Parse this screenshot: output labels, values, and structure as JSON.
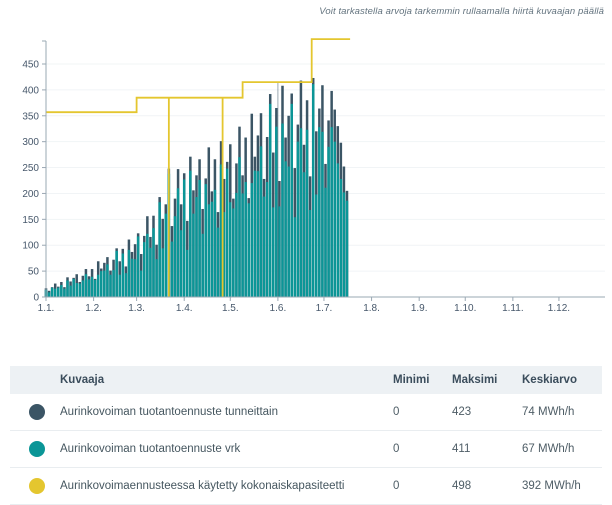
{
  "note": "Voit tarkastella arvoja tarkemmin rullaamalla hiirtä kuvaajan päällä",
  "colors": {
    "hourly": "#3b5565",
    "daily": "#0b9697",
    "capacity": "#e4c62f",
    "axis": "#9aa8b3",
    "grid": "#f1f4f6",
    "tick_text": "#47586b",
    "hover_marker": "#3b5565"
  },
  "chart_data": {
    "type": "area",
    "title": "",
    "xlabel": "",
    "ylabel": "",
    "y_ticks": [
      0,
      50,
      100,
      150,
      200,
      250,
      300,
      350,
      400,
      450
    ],
    "ylim": [
      0,
      495
    ],
    "x_tick_labels": [
      "1.1.",
      "1.2.",
      "1.3.",
      "1.4.",
      "1.5.",
      "1.6.",
      "1.7.",
      "1.8.",
      "1.9.",
      "1.10.",
      "1.11.",
      "1.12."
    ],
    "x_tick_days": [
      0,
      31,
      59,
      90,
      120,
      151,
      181,
      212,
      243,
      273,
      304,
      334
    ],
    "x_range_days": [
      0,
      364
    ],
    "grid": "horizontal",
    "legend_position": "table-below",
    "sample_step_days": 2,
    "hover_marker_day": 151,
    "series": [
      {
        "name": "Aurinkovoiman tuotantoennuste tunneittain",
        "color_key": "hourly",
        "unit": "MWh/h",
        "values": [
          17,
          12,
          19,
          26,
          20,
          29,
          19,
          38,
          30,
          37,
          44,
          29,
          41,
          54,
          40,
          54,
          35,
          69,
          55,
          66,
          77,
          51,
          72,
          94,
          69,
          93,
          59,
          111,
          87,
          102,
          123,
          83,
          118,
          156,
          116,
          157,
          101,
          193,
          151,
          179,
          248,
          137,
          190,
          247,
          179,
          239,
          147,
          271,
          206,
          235,
          266,
          170,
          229,
          289,
          204,
          266,
          164,
          301,
          228,
          261,
          295,
          190,
          258,
          329,
          235,
          308,
          191,
          354,
          271,
          312,
          355,
          228,
          309,
          392,
          279,
          365,
          224,
          408,
          308,
          350,
          393,
          249,
          333,
          418,
          294,
          380,
          233,
          423,
          320,
          364,
          409,
          257,
          341,
          398,
          362,
          330,
          298,
          252,
          205
        ]
      },
      {
        "name": "Aurinkovoiman tuotantoennuste vrk",
        "color_key": "daily",
        "unit": "MWh/h",
        "values": [
          14,
          9,
          18,
          16,
          18,
          23,
          16,
          32,
          22,
          35,
          27,
          26,
          32,
          44,
          34,
          39,
          33,
          43,
          50,
          51,
          63,
          43,
          52,
          89,
          43,
          84,
          46,
          91,
          74,
          73,
          117,
          51,
          106,
          122,
          95,
          133,
          73,
          183,
          94,
          161,
          238,
          107,
          156,
          210,
          129,
          227,
          91,
          244,
          161,
          193,
          226,
          122,
          218,
          179,
          184,
          207,
          134,
          256,
          164,
          248,
          183,
          171,
          201,
          270,
          200,
          222,
          181,
          220,
          244,
          243,
          291,
          194,
          222,
          373,
          173,
          329,
          175,
          335,
          262,
          252,
          373,
          154,
          300,
          326,
          241,
          323,
          168,
          411,
          198,
          328,
          319,
          211,
          290,
          328,
          300,
          258,
          228,
          202,
          186
        ]
      },
      {
        "name": "Aurinkovoimaennusteessa käytetty kokonaiskapasiteetti",
        "color_key": "capacity",
        "unit": "MWh/h",
        "step_points": [
          [
            0,
            357
          ],
          [
            59,
            357
          ],
          [
            59,
            385
          ],
          [
            128,
            385
          ],
          [
            128,
            415
          ],
          [
            173,
            415
          ],
          [
            173,
            498
          ],
          [
            198,
            498
          ]
        ],
        "zero_drop_days": [
          80,
          115
        ],
        "zero_drop_from_value": 385
      }
    ]
  },
  "table": {
    "headers": {
      "series": "Kuvaaja",
      "min": "Minimi",
      "max": "Maksimi",
      "avg": "Keskiarvo"
    },
    "rows": [
      {
        "label": "Aurinkovoiman tuotantoennuste tunneittain",
        "min": "0",
        "max": "423",
        "avg": "74 MWh/h",
        "color": "#3b5565"
      },
      {
        "label": "Aurinkovoiman tuotantoennuste vrk",
        "min": "0",
        "max": "411",
        "avg": "67 MWh/h",
        "color": "#0b9697"
      },
      {
        "label": "Aurinkovoimaennusteessa käytetty kokonaiskapasiteetti",
        "min": "0",
        "max": "498",
        "avg": "392 MWh/h",
        "color": "#e4c62f"
      }
    ]
  }
}
